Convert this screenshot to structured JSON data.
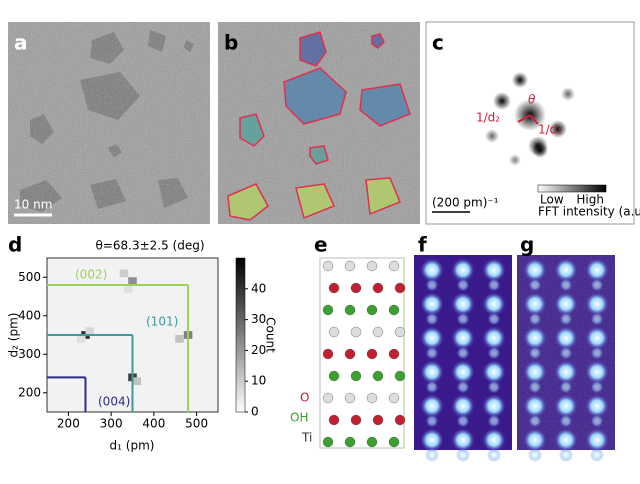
{
  "panels": {
    "a": "a",
    "b": "b",
    "c": "c",
    "d": "d",
    "e": "e",
    "f": "f",
    "g": "g"
  },
  "panel_a": {
    "scale_bar": "10 nm"
  },
  "panel_c": {
    "theta": "θ",
    "inv_d2": "1/d₂",
    "inv_d1": "1/d₁",
    "scale_bar": "(200 pm)⁻¹",
    "low": "Low",
    "high": "High",
    "colorbar_label": "FFT intensity (a.u.)"
  },
  "panel_e": {
    "labels": [
      "O",
      "OH",
      "Ti"
    ]
  },
  "chart_data": {
    "type": "heatmap",
    "title": "θ=68.3±2.5 (deg)",
    "x_label": "d₁ (pm)",
    "y_label": "d₂ (pm)",
    "xlim": [
      150,
      550
    ],
    "ylim": [
      150,
      550
    ],
    "xticks": [
      200,
      300,
      400,
      500
    ],
    "yticks": [
      200,
      300,
      400,
      500
    ],
    "bin": 20,
    "cells": {
      "x": [
        240,
        350,
        350,
        480,
        330,
        460,
        250,
        360,
        340,
        230
      ],
      "y": [
        350,
        240,
        490,
        350,
        510,
        340,
        360,
        230,
        470,
        340
      ],
      "counts": [
        40,
        38,
        22,
        25,
        10,
        12,
        8,
        12,
        6,
        6
      ]
    },
    "clim": [
      0,
      50
    ],
    "cticks": [
      0,
      10,
      20,
      30,
      40
    ],
    "colorbar_label": "Count",
    "guides": [
      {
        "label": "(002)",
        "d1": 480,
        "d2": 480,
        "color": "#9bd35a"
      },
      {
        "label": "(101)",
        "d1": 350,
        "d2": 350,
        "color": "#3d9a9a"
      },
      {
        "label": "(004)",
        "d1": 240,
        "d2": 240,
        "color": "#2e2a8c"
      }
    ]
  }
}
